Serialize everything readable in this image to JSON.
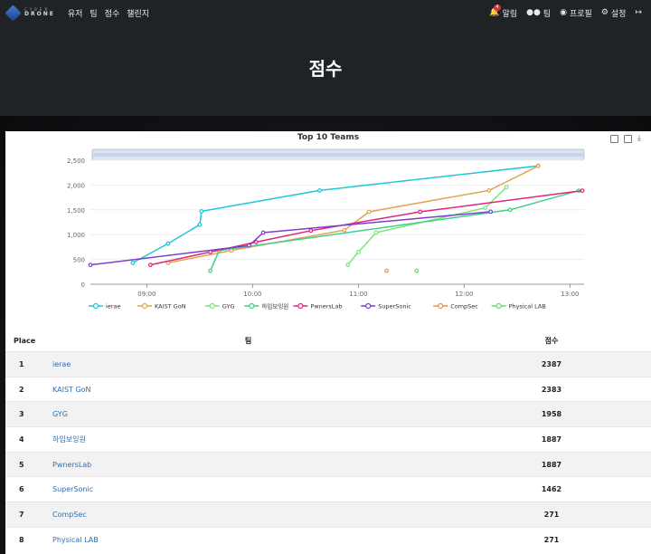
{
  "navbar": {
    "logo": {
      "line1": "CYBER",
      "line2": "DRONE"
    },
    "left_links": [
      "유저",
      "팀",
      "점수",
      "챌린지"
    ],
    "notifications": {
      "label": "알림",
      "count": "4"
    },
    "team_label": "팀",
    "profile_label": "프로필",
    "settings_label": "설정"
  },
  "page": {
    "title": "점수"
  },
  "chart_data": {
    "type": "line",
    "title": "Top 10 Teams",
    "y_ticks": [
      "0",
      "500",
      "1,000",
      "1,500",
      "2,000",
      "2,500"
    ],
    "ylim": [
      0,
      2500
    ],
    "x_ticks": [
      "09:00",
      "10:00",
      "11:00",
      "12:00",
      "13:00"
    ],
    "x_range": [
      "08:28",
      "13:08"
    ],
    "series": [
      {
        "name": "ierae",
        "color": "#1fc6d8",
        "points": [
          [
            "08:52",
            430
          ],
          [
            "09:12",
            820
          ],
          [
            "09:30",
            1200
          ],
          [
            "09:31",
            1470
          ],
          [
            "10:38",
            1890
          ],
          [
            "12:42",
            2387
          ]
        ]
      },
      {
        "name": "KAIST GoN",
        "color": "#e0a54e",
        "points": [
          [
            "09:12",
            430
          ],
          [
            "09:48",
            680
          ],
          [
            "10:52",
            1090
          ],
          [
            "11:06",
            1460
          ],
          [
            "12:14",
            1890
          ],
          [
            "12:42",
            2383
          ]
        ]
      },
      {
        "name": "GYG",
        "color": "#7ce67c",
        "points": [
          [
            "10:54",
            390
          ],
          [
            "11:00",
            650
          ],
          [
            "11:10",
            1040
          ],
          [
            "12:12",
            1540
          ],
          [
            "12:24",
            1958
          ]
        ]
      },
      {
        "name": "하입보잉원",
        "color": "#3fd08a",
        "points": [
          [
            "09:36",
            270
          ],
          [
            "09:41",
            680
          ],
          [
            "12:26",
            1500
          ],
          [
            "13:05",
            1887
          ]
        ]
      },
      {
        "name": "PwnersLab",
        "color": "#e0257b",
        "points": [
          [
            "09:02",
            390
          ],
          [
            "09:36",
            650
          ],
          [
            "10:02",
            850
          ],
          [
            "10:33",
            1080
          ],
          [
            "11:35",
            1460
          ],
          [
            "13:07",
            1887
          ]
        ]
      },
      {
        "name": "SuperSonic",
        "color": "#7b3fd0",
        "points": [
          [
            "08:28",
            390
          ],
          [
            "09:58",
            780
          ],
          [
            "10:06",
            1040
          ],
          [
            "12:15",
            1462
          ]
        ]
      },
      {
        "name": "CompSec",
        "color": "#e8904b",
        "points": [
          [
            "11:16",
            271
          ]
        ]
      },
      {
        "name": "Physical LAB",
        "color": "#5fe05f",
        "points": [
          [
            "11:33",
            271
          ]
        ]
      }
    ]
  },
  "table": {
    "headers": {
      "place": "Place",
      "team": "팀",
      "score": "점수"
    },
    "rows": [
      {
        "place": "1",
        "team": "ierae",
        "score": "2387"
      },
      {
        "place": "2",
        "team": "KAIST GoN",
        "score": "2383"
      },
      {
        "place": "3",
        "team": "GYG",
        "score": "1958"
      },
      {
        "place": "4",
        "team": "하입보잉원",
        "score": "1887"
      },
      {
        "place": "5",
        "team": "PwnersLab",
        "score": "1887"
      },
      {
        "place": "6",
        "team": "SuperSonic",
        "score": "1462"
      },
      {
        "place": "7",
        "team": "CompSec",
        "score": "271"
      },
      {
        "place": "8",
        "team": "Physical LAB",
        "score": "271"
      }
    ]
  }
}
